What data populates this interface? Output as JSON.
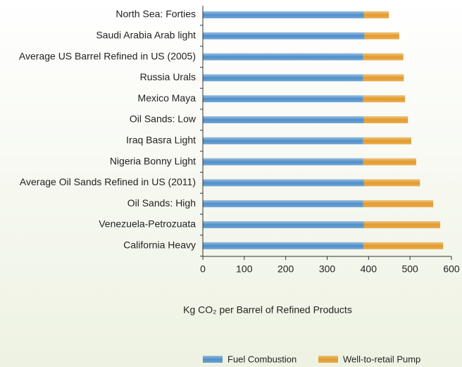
{
  "chart_data": {
    "type": "stacked_barh",
    "categories": [
      "North Sea: Forties",
      "Saudi Arabia Arab light",
      "Average US Barrel Refined in US (2005)",
      "Russia Urals",
      "Mexico Maya",
      "Oil Sands: Low",
      "Iraq Basra Light",
      "Nigeria Bonny Light",
      "Average Oil Sands Refined in US (2011)",
      "Oil Sands: High",
      "Venezuela-Petrozuata",
      "California Heavy"
    ],
    "series": [
      {
        "name": "Fuel Combustion",
        "color": "#4f8fcb",
        "values": [
          389,
          390,
          387,
          387,
          387,
          389,
          387,
          387,
          389,
          387,
          389,
          388
        ]
      },
      {
        "name": "Well-to-retail Pump",
        "color": "#e39a2a",
        "values": [
          60,
          84,
          97,
          98,
          101,
          106,
          116,
          128,
          135,
          169,
          184,
          192
        ]
      }
    ],
    "xlim": [
      0,
      600
    ],
    "xticks": [
      0,
      100,
      200,
      300,
      400,
      500,
      600
    ],
    "x_label": "Kg CO₂ per Barrel of Refined Products"
  }
}
